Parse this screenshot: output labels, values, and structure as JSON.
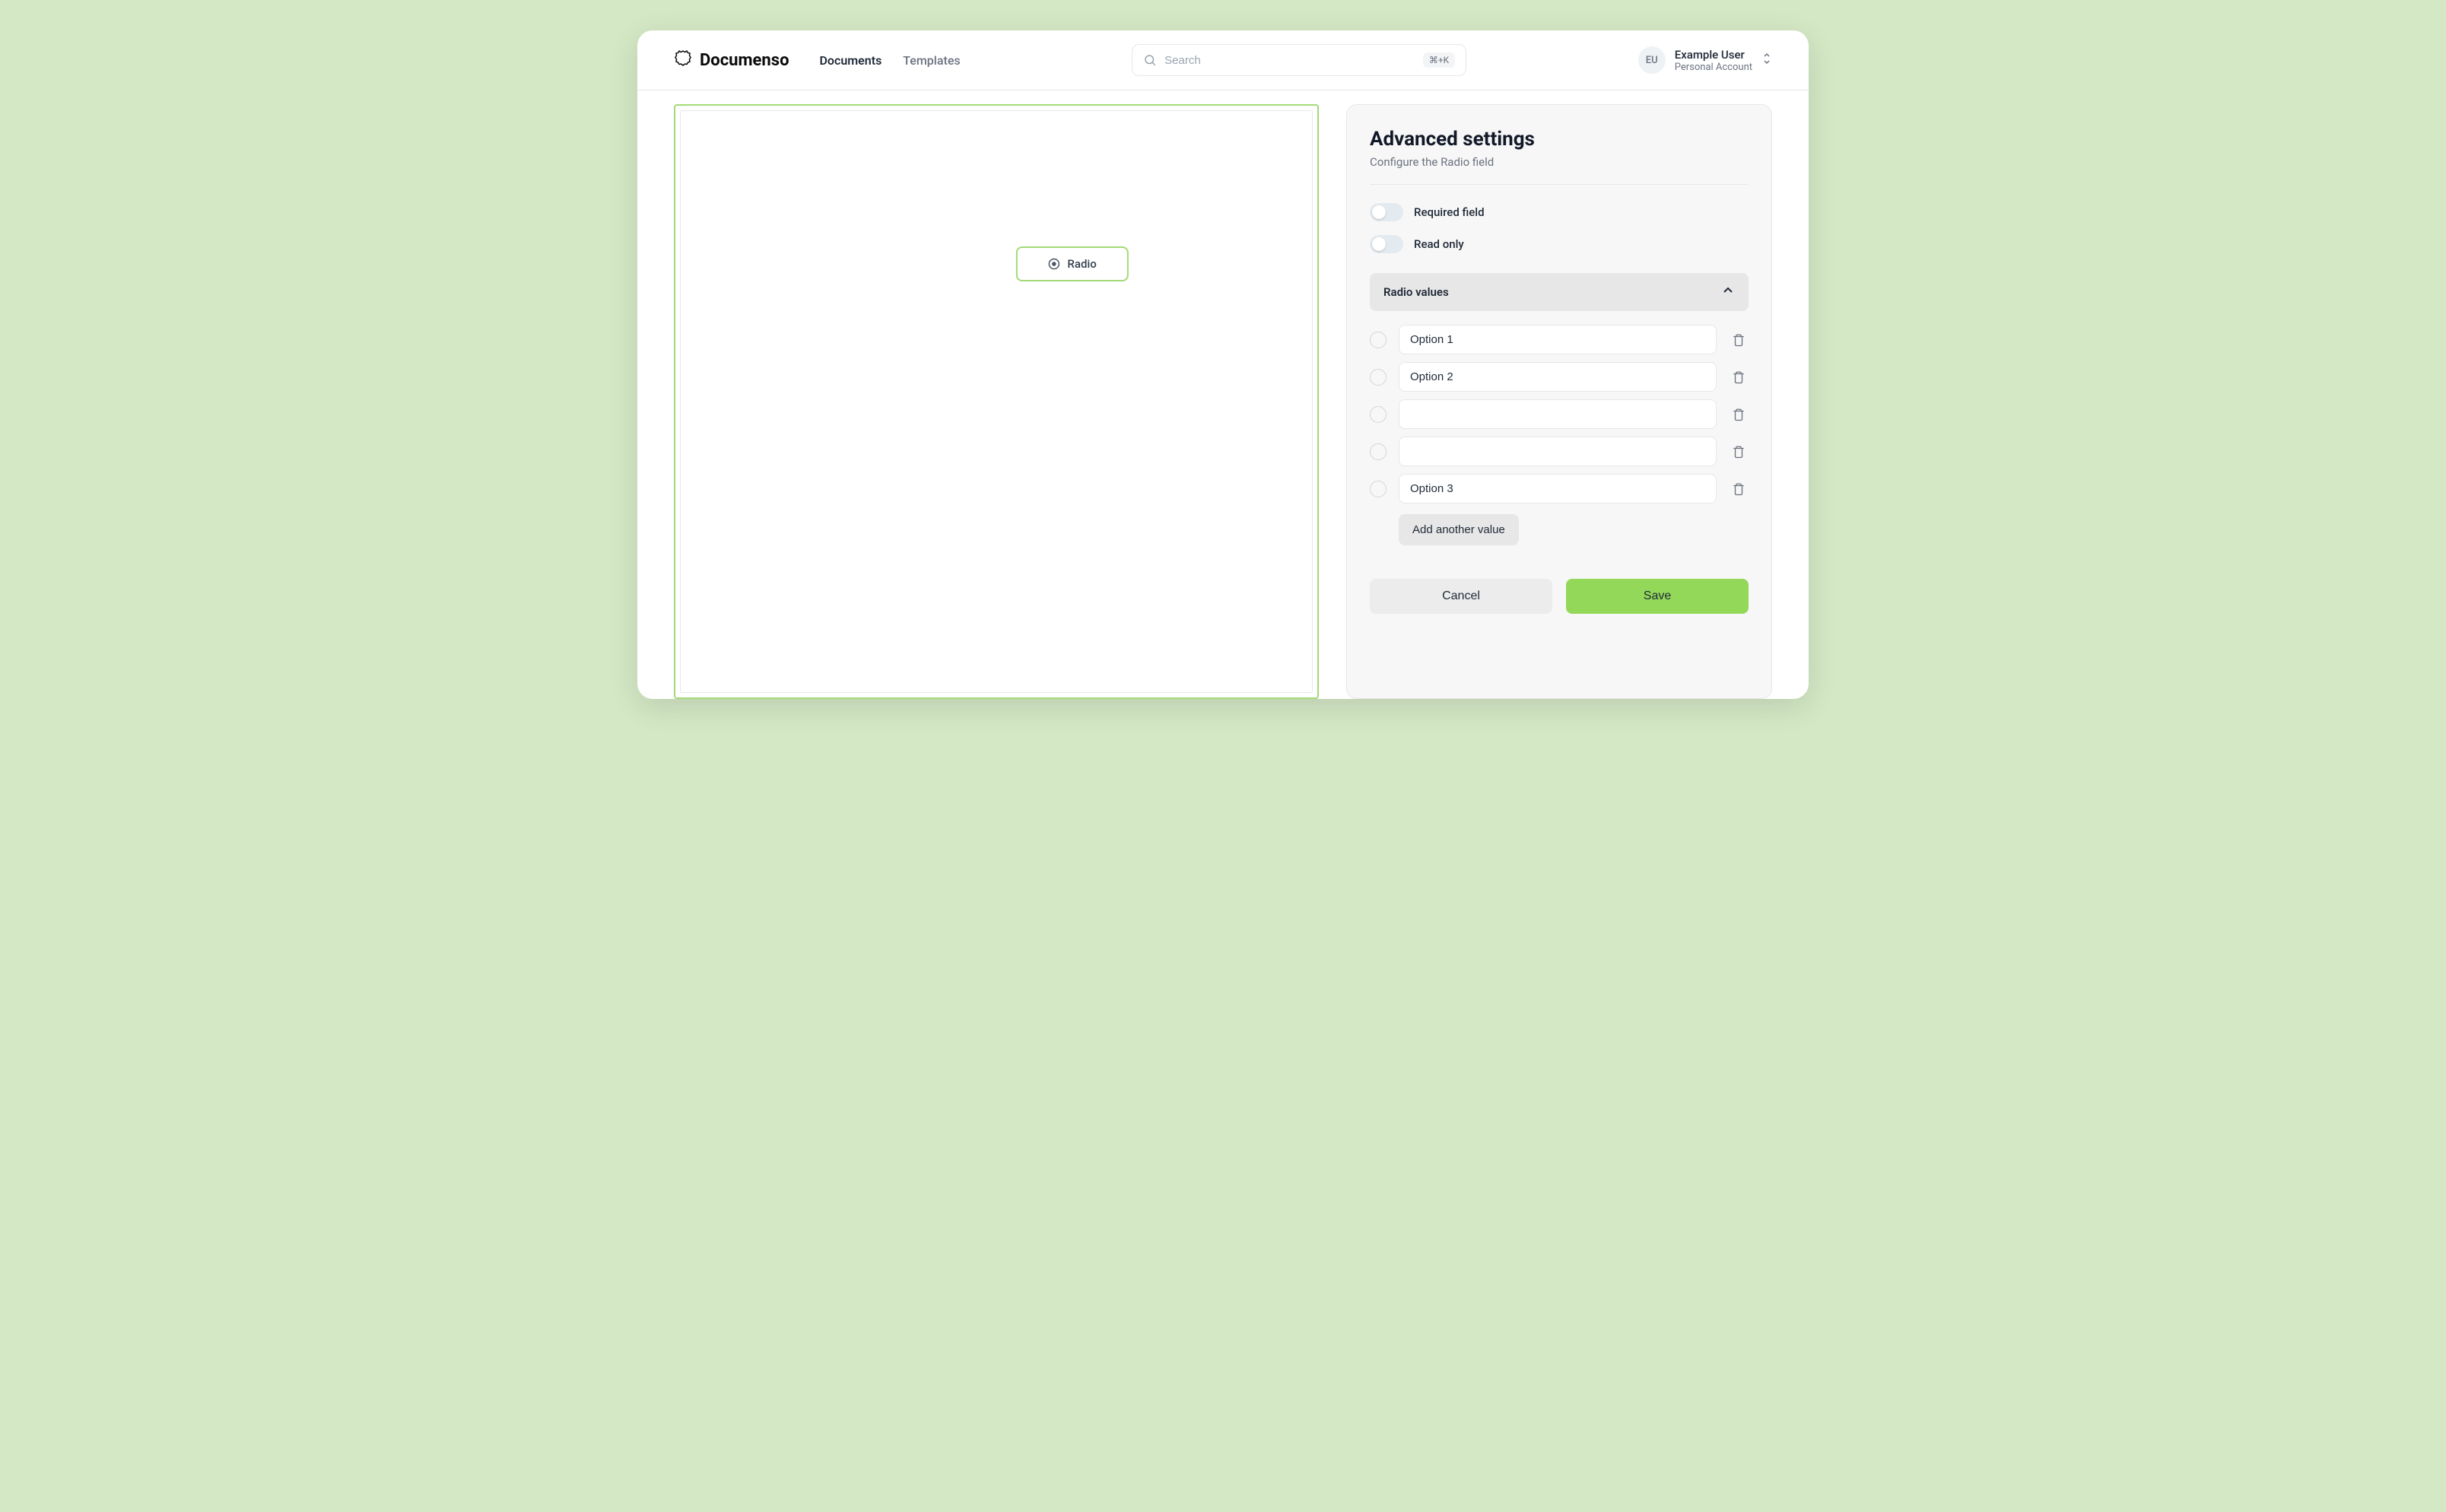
{
  "brand": {
    "name": "Documenso"
  },
  "nav": {
    "documents": "Documents",
    "templates": "Templates",
    "active": "documents"
  },
  "search": {
    "placeholder": "Search",
    "shortcut": "⌘+K"
  },
  "user": {
    "initials": "EU",
    "name": "Example User",
    "sub": "Personal Account"
  },
  "canvas": {
    "field": {
      "type": "radio",
      "label": "Radio"
    }
  },
  "panel": {
    "title": "Advanced settings",
    "subtitle": "Configure the Radio field",
    "toggles": {
      "required": {
        "label": "Required field",
        "on": false
      },
      "readonly": {
        "label": "Read only",
        "on": false
      }
    },
    "section": {
      "title": "Radio values",
      "expanded": true
    },
    "options": [
      {
        "value": "Option 1"
      },
      {
        "value": "Option 2"
      },
      {
        "value": ""
      },
      {
        "value": ""
      },
      {
        "value": "Option 3"
      }
    ],
    "add_label": "Add another value",
    "cancel": "Cancel",
    "save": "Save"
  },
  "colors": {
    "page_bg": "#d4e8c5",
    "accent_border": "#a3d977",
    "save_bg": "#94d859",
    "panel_bg": "#f7f7f7"
  }
}
